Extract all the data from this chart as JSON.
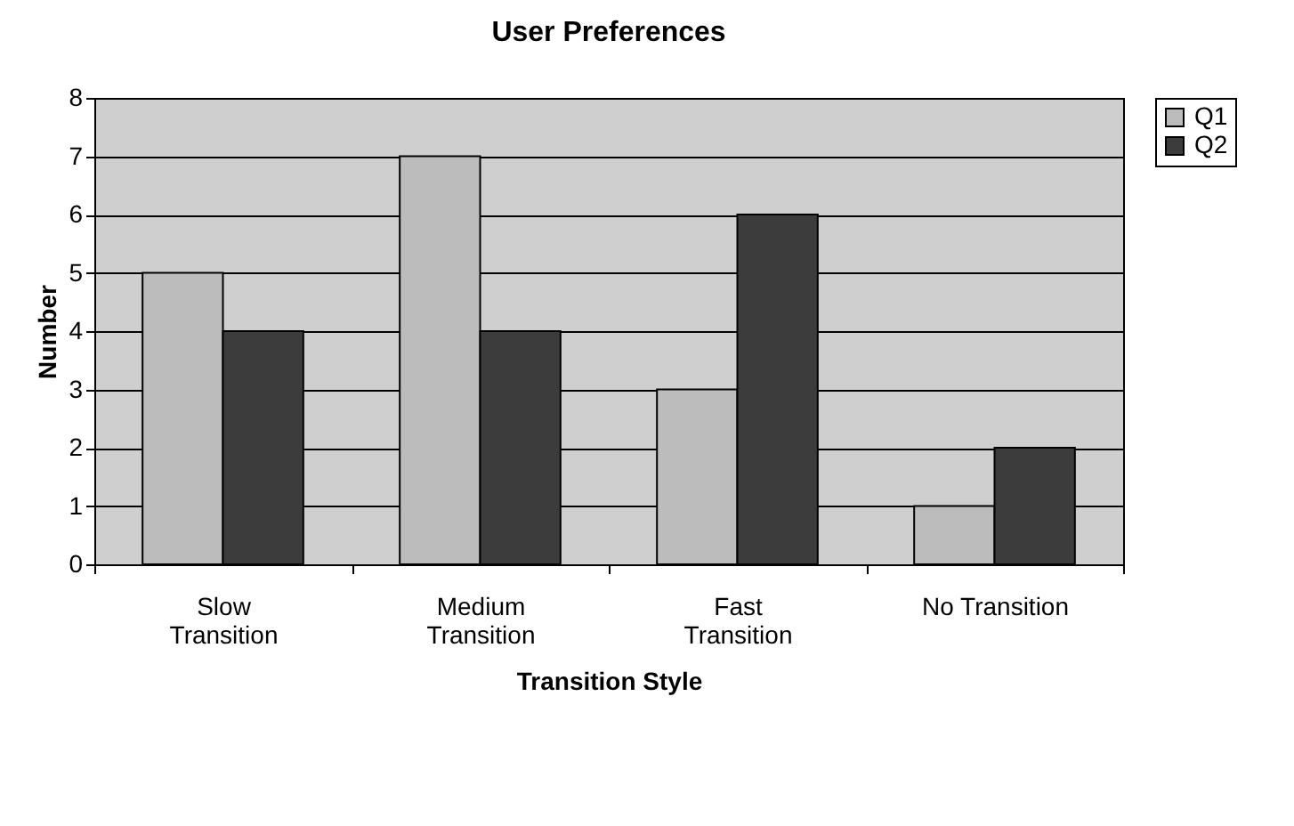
{
  "chart_data": {
    "type": "bar",
    "title": "User Preferences",
    "xlabel": "Transition Style",
    "ylabel": "Number",
    "categories": [
      "Slow Transition",
      "Medium Transition",
      "Fast Transition",
      "No Transition"
    ],
    "series": [
      {
        "name": "Q1",
        "color": "#bcbcbc",
        "values": [
          5,
          7,
          3,
          1
        ]
      },
      {
        "name": "Q2",
        "color": "#3c3c3c",
        "values": [
          4,
          4,
          6,
          2
        ]
      }
    ],
    "ylim": [
      0,
      8
    ],
    "yticks": [
      0,
      1,
      2,
      3,
      4,
      5,
      6,
      7,
      8
    ],
    "grid": "y",
    "legend": "right"
  }
}
